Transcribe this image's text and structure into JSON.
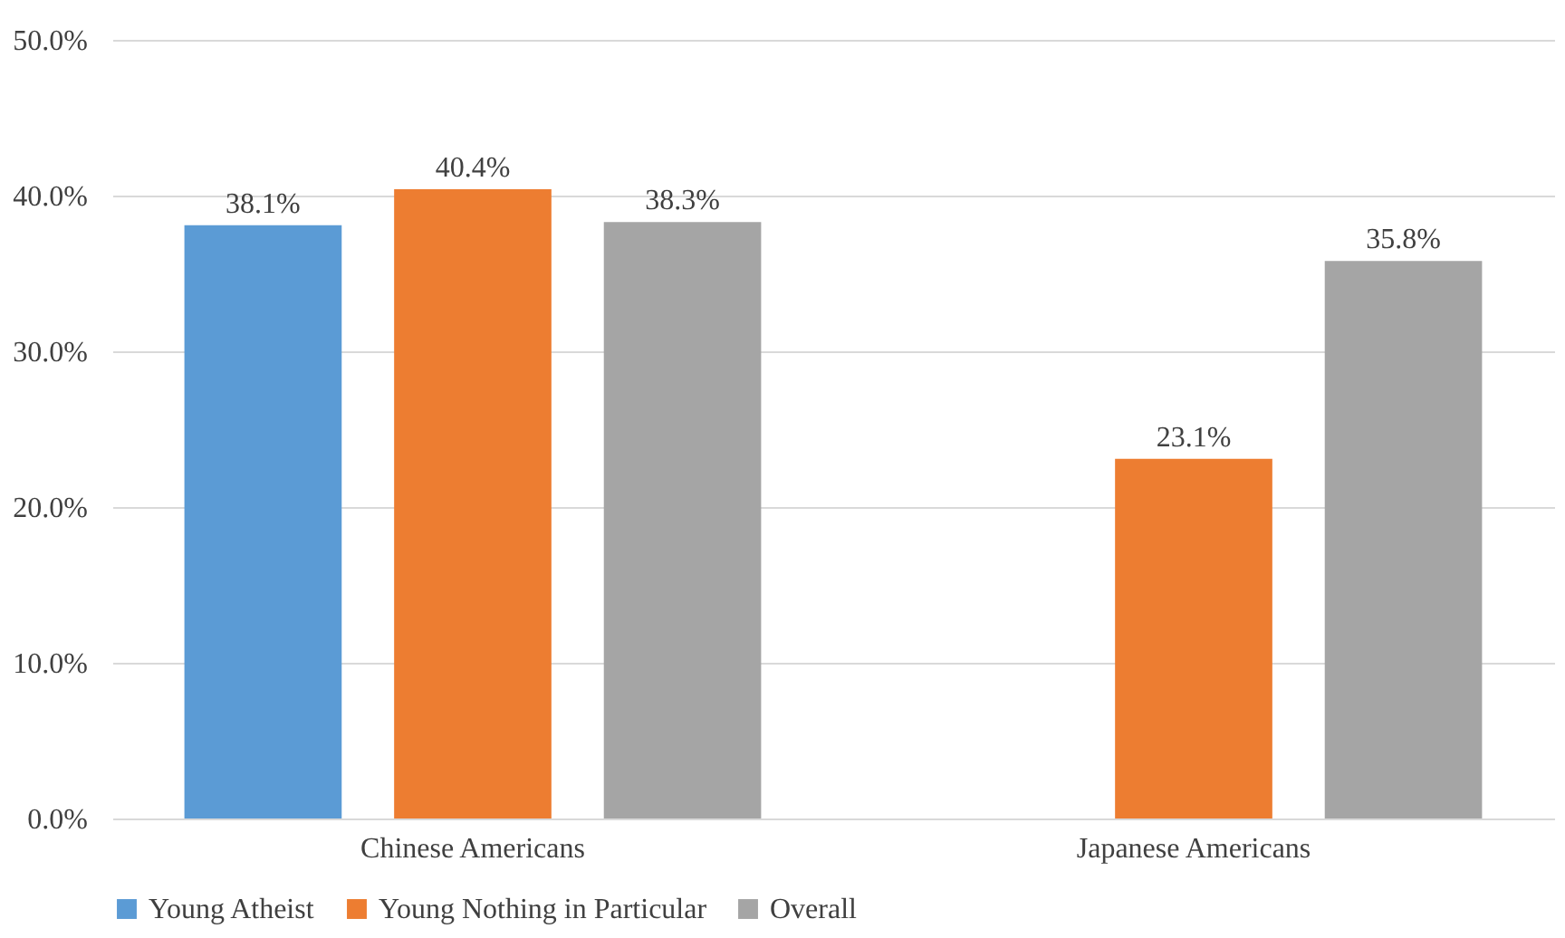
{
  "chart_data": {
    "type": "bar",
    "categories": [
      "Chinese Americans",
      "Japanese Americans"
    ],
    "series": [
      {
        "name": "Young Atheist",
        "color": "#5b9bd5",
        "values": [
          38.1,
          null
        ],
        "value_labels": [
          "38.1%",
          null
        ]
      },
      {
        "name": "Young Nothing in Particular",
        "color": "#ed7d31",
        "values": [
          40.4,
          23.1
        ],
        "value_labels": [
          "40.4%",
          "23.1%"
        ]
      },
      {
        "name": "Overall",
        "color": "#a5a5a5",
        "values": [
          38.3,
          35.8
        ],
        "value_labels": [
          "38.3%",
          "35.8%"
        ]
      }
    ],
    "ylim": [
      0,
      50
    ],
    "yticks": [
      {
        "value": 0,
        "label": "0.0%"
      },
      {
        "value": 10,
        "label": "10.0%"
      },
      {
        "value": 20,
        "label": "20.0%"
      },
      {
        "value": 30,
        "label": "30.0%"
      },
      {
        "value": 40,
        "label": "40.0%"
      },
      {
        "value": 50,
        "label": "50.0%"
      }
    ],
    "grid": "y",
    "legend": "bottom"
  }
}
